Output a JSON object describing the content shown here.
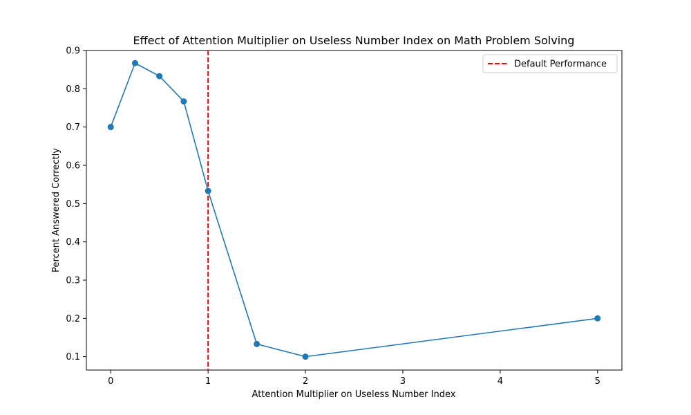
{
  "chart_data": {
    "type": "line",
    "title": "Effect of Attention Multiplier on Useless Number Index on Math Problem Solving",
    "xlabel": "Attention Multiplier on Useless Number Index",
    "ylabel": "Percent Answered Correctly",
    "xlim": [
      -0.25,
      5.25
    ],
    "ylim": [
      0.065,
      0.9
    ],
    "xticks": [
      0,
      1,
      2,
      3,
      4,
      5
    ],
    "yticks": [
      0.1,
      0.2,
      0.3,
      0.4,
      0.5,
      0.6,
      0.7,
      0.8,
      0.9
    ],
    "grid": false,
    "legend_position": "top-right",
    "series": [
      {
        "color": "#1f77b4",
        "marker": "circle",
        "x": [
          0,
          0.25,
          0.5,
          0.75,
          1,
          1.5,
          2,
          5
        ],
        "y": [
          0.7,
          0.867,
          0.833,
          0.767,
          0.533,
          0.133,
          0.1,
          0.2
        ]
      }
    ],
    "reference_lines": [
      {
        "orientation": "vertical",
        "x": 1,
        "name": "Default Performance",
        "color": "#ff0000",
        "style": "dashed"
      }
    ]
  }
}
